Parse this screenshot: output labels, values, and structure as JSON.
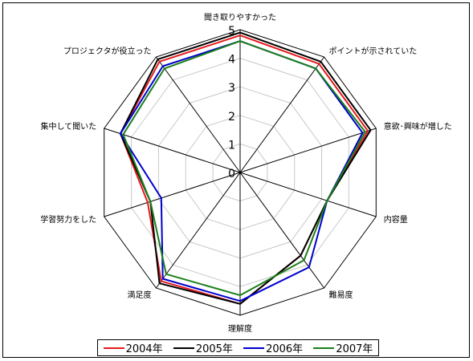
{
  "chart_data": {
    "type": "radar",
    "title": "",
    "categories": [
      "聞き取りやすかった",
      "ポイントが示されていた",
      "意欲･興味が増した",
      "内容量",
      "難易度",
      "理解度",
      "満足度",
      "学習努力をした",
      "集中して聞いた",
      "プロジェクタが役立った"
    ],
    "rlim": [
      0,
      5
    ],
    "rticks": [
      "0",
      "1",
      "2",
      "3",
      "4",
      "5"
    ],
    "grid": true,
    "legend_position": "bottom",
    "series": [
      {
        "name": "2004年",
        "color": "#e41a1c",
        "values": [
          4.8,
          4.7,
          4.7,
          3.2,
          3.6,
          4.6,
          4.7,
          3.4,
          4.4,
          4.8
        ]
      },
      {
        "name": "2005年",
        "color": "#000000",
        "values": [
          4.9,
          4.8,
          4.8,
          3.2,
          3.6,
          4.6,
          4.8,
          3.3,
          4.4,
          4.9
        ]
      },
      {
        "name": "2006年",
        "color": "#0000cc",
        "values": [
          4.6,
          4.5,
          4.5,
          3.2,
          4.1,
          4.5,
          4.6,
          2.9,
          4.4,
          4.6
        ]
      },
      {
        "name": "2007年",
        "color": "#1a7f1a",
        "values": [
          4.6,
          4.5,
          4.6,
          3.2,
          3.8,
          4.3,
          4.4,
          3.3,
          4.3,
          4.5
        ]
      }
    ]
  }
}
